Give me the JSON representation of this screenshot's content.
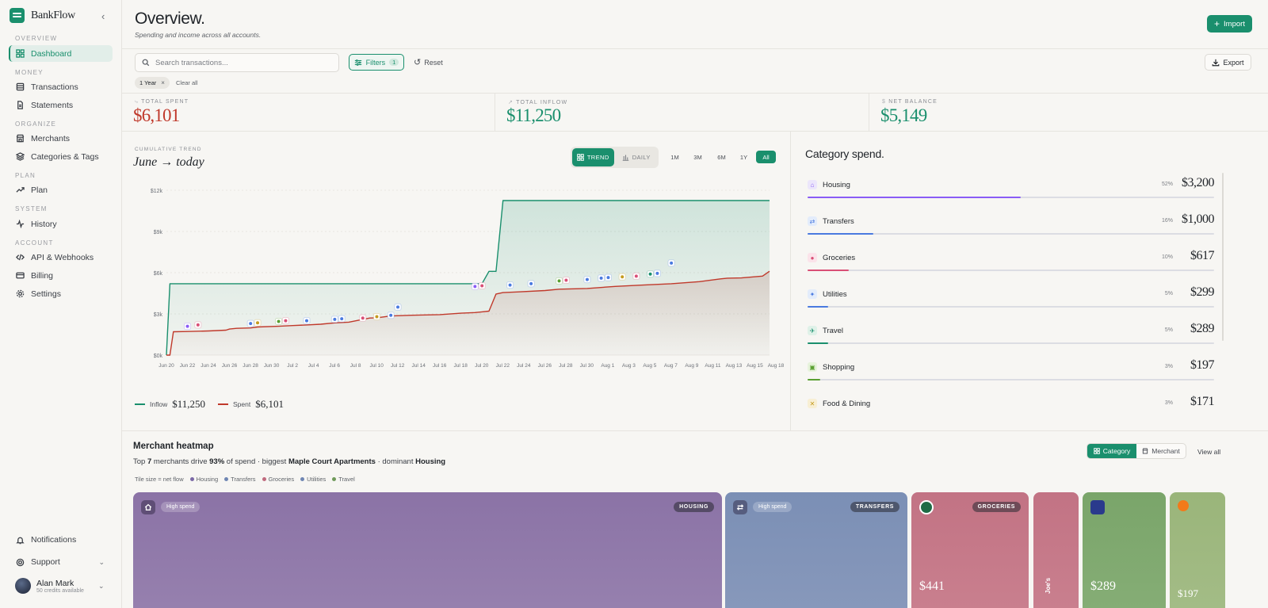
{
  "app": {
    "name": "BankFlow"
  },
  "sidebar": {
    "sections": [
      {
        "label": "OVERVIEW",
        "items": [
          {
            "label": "Dashboard",
            "icon": "grid-icon",
            "active": true
          }
        ]
      },
      {
        "label": "MONEY",
        "items": [
          {
            "label": "Transactions",
            "icon": "list-icon"
          },
          {
            "label": "Statements",
            "icon": "document-icon"
          }
        ]
      },
      {
        "label": "ORGANIZE",
        "items": [
          {
            "label": "Merchants",
            "icon": "store-icon"
          },
          {
            "label": "Categories & Tags",
            "icon": "layers-icon"
          }
        ]
      },
      {
        "label": "PLAN",
        "items": [
          {
            "label": "Plan",
            "icon": "trend-icon"
          }
        ]
      },
      {
        "label": "SYSTEM",
        "items": [
          {
            "label": "History",
            "icon": "activity-icon"
          }
        ]
      },
      {
        "label": "ACCOUNT",
        "items": [
          {
            "label": "API & Webhooks",
            "icon": "code-icon"
          },
          {
            "label": "Billing",
            "icon": "card-icon"
          },
          {
            "label": "Settings",
            "icon": "gear-icon"
          }
        ]
      }
    ],
    "bottom": {
      "notifications": "Notifications",
      "support": "Support"
    },
    "user": {
      "name": "Alan Mark",
      "credits": "50 credits available"
    }
  },
  "header": {
    "title": "Overview.",
    "subtitle": "Spending and income across all accounts.",
    "import_label": "Import"
  },
  "filters": {
    "search_placeholder": "Search transactions...",
    "filters_label": "Filters",
    "filters_count": "1",
    "reset_label": "Reset",
    "export_label": "Export",
    "active_chip": "1 Year",
    "clear_all": "Clear all"
  },
  "kpis": [
    {
      "label": "TOTAL SPENT",
      "value": "$6,101",
      "color": "#c0392b"
    },
    {
      "label": "TOTAL INFLOW",
      "value": "$11,250",
      "color": "#1a8f6d"
    },
    {
      "label": "NET BALANCE",
      "value": "$5,149",
      "color": "#1a8f6d"
    }
  ],
  "trend": {
    "kicker": "CUMULATIVE TREND",
    "title": "June → today",
    "toggle": {
      "trend": "TREND",
      "daily": "DAILY",
      "active": "trend"
    },
    "ranges": [
      "1M",
      "3M",
      "6M",
      "1Y",
      "All"
    ],
    "active_range": "All",
    "legend": {
      "inflow_label": "Inflow",
      "inflow_value": "$11,250",
      "spent_label": "Spent",
      "spent_value": "$6,101"
    }
  },
  "chart_data": {
    "type": "area",
    "title": "June → today",
    "yticks": [
      "$0k",
      "$3k",
      "$6k",
      "$9k",
      "$12k"
    ],
    "ylim": [
      0,
      12000
    ],
    "xticks": [
      "Jun 20",
      "Jun 22",
      "Jun 24",
      "Jun 26",
      "Jun 28",
      "Jun 30",
      "Jul 2",
      "Jul 4",
      "Jul 6",
      "Jul 8",
      "Jul 10",
      "Jul 12",
      "Jul 14",
      "Jul 16",
      "Jul 18",
      "Jul 20",
      "Jul 22",
      "Jul 24",
      "Jul 26",
      "Jul 28",
      "Jul 30",
      "Aug 1",
      "Aug 3",
      "Aug 5",
      "Aug 7",
      "Aug 9",
      "Aug 11",
      "Aug 13",
      "Aug 15",
      "Aug 18"
    ],
    "x": [
      0,
      0.5,
      1,
      3,
      6,
      8.5,
      9,
      10,
      12,
      13,
      16,
      18,
      20,
      22,
      24,
      26,
      27,
      29,
      30,
      32,
      35,
      39,
      42,
      44,
      45,
      46,
      47,
      48,
      50,
      54,
      56,
      60,
      64,
      68,
      72,
      76,
      79,
      80,
      82,
      85,
      86
    ],
    "series": [
      {
        "name": "Inflow",
        "color": "#1a8f6d",
        "values": [
          0,
          5200,
          5200,
          5200,
          5200,
          5200,
          5200,
          5200,
          5200,
          5200,
          5200,
          5200,
          5200,
          5200,
          5200,
          5200,
          5200,
          5200,
          5200,
          5200,
          5200,
          5200,
          5200,
          5200,
          5200,
          6100,
          6100,
          11250,
          11250,
          11250,
          11250,
          11250,
          11250,
          11250,
          11250,
          11250,
          11250,
          11250,
          11250,
          11250,
          11250
        ]
      },
      {
        "name": "Spent",
        "color": "#c0392b",
        "values": [
          0,
          0,
          1700,
          1720,
          1760,
          1820,
          1900,
          1950,
          1980,
          2050,
          2100,
          2150,
          2200,
          2250,
          2350,
          2400,
          2500,
          2700,
          2720,
          2850,
          2900,
          2950,
          3050,
          3100,
          3150,
          3200,
          4450,
          4550,
          4600,
          4700,
          4800,
          4850,
          5000,
          5100,
          5200,
          5350,
          5550,
          5600,
          5620,
          5750,
          6101
        ]
      }
    ],
    "markers": [
      {
        "x": 3,
        "y": 2100,
        "icon": "housing-icon",
        "color": "#8a5cf6"
      },
      {
        "x": 4.5,
        "y": 2200,
        "icon": "groceries-icon",
        "color": "#d94f76"
      },
      {
        "x": 12,
        "y": 2300,
        "icon": "utilities-icon",
        "color": "#4a7ae0"
      },
      {
        "x": 13,
        "y": 2350,
        "icon": "dining-icon",
        "color": "#c59b1e"
      },
      {
        "x": 16,
        "y": 2450,
        "icon": "shopping-icon",
        "color": "#5aa032"
      },
      {
        "x": 17,
        "y": 2500,
        "icon": "groceries-icon",
        "color": "#d94f76"
      },
      {
        "x": 20,
        "y": 2500,
        "icon": "transfers-icon",
        "color": "#4a7ae0"
      },
      {
        "x": 24,
        "y": 2600,
        "icon": "utilities-icon",
        "color": "#4a7ae0"
      },
      {
        "x": 25,
        "y": 2650,
        "icon": "travel-icon",
        "color": "#4a7ae0"
      },
      {
        "x": 28,
        "y": 2700,
        "icon": "groceries-icon",
        "color": "#d94f76"
      },
      {
        "x": 30,
        "y": 2800,
        "icon": "dining-icon",
        "color": "#c59b1e"
      },
      {
        "x": 32,
        "y": 2900,
        "icon": "travel-icon",
        "color": "#4a7ae0"
      },
      {
        "x": 33,
        "y": 3500,
        "icon": "transfers-icon",
        "color": "#4a7ae0"
      },
      {
        "x": 44,
        "y": 5000,
        "icon": "housing-icon",
        "color": "#8a5cf6"
      },
      {
        "x": 45,
        "y": 5050,
        "icon": "groceries-icon",
        "color": "#d94f76"
      },
      {
        "x": 49,
        "y": 5100,
        "icon": "travel-icon",
        "color": "#4a7ae0"
      },
      {
        "x": 52,
        "y": 5200,
        "icon": "utilities-icon",
        "color": "#4a7ae0"
      },
      {
        "x": 56,
        "y": 5400,
        "icon": "shopping-icon",
        "color": "#5aa032"
      },
      {
        "x": 57,
        "y": 5450,
        "icon": "groceries-icon",
        "color": "#d94f76"
      },
      {
        "x": 60,
        "y": 5500,
        "icon": "utilities-icon",
        "color": "#4a7ae0"
      },
      {
        "x": 62,
        "y": 5600,
        "icon": "travel-icon",
        "color": "#4a7ae0"
      },
      {
        "x": 63,
        "y": 5650,
        "icon": "utilities-icon",
        "color": "#4a7ae0"
      },
      {
        "x": 65,
        "y": 5700,
        "icon": "dining-icon",
        "color": "#c59b1e"
      },
      {
        "x": 67,
        "y": 5750,
        "icon": "groceries-icon",
        "color": "#d94f76"
      },
      {
        "x": 69,
        "y": 5900,
        "icon": "travel-icon",
        "color": "#1a8f6d"
      },
      {
        "x": 70,
        "y": 5950,
        "icon": "travel-icon",
        "color": "#4a7ae0"
      },
      {
        "x": 72,
        "y": 6700,
        "icon": "transfers-icon",
        "color": "#4a7ae0"
      }
    ],
    "legend": [
      "Inflow",
      "Spent"
    ]
  },
  "categories": {
    "title": "Category spend.",
    "items": [
      {
        "name": "Housing",
        "pct": "52%",
        "pct_value": 52,
        "amount": "$3,200",
        "color": "#8a5cf6",
        "bg": "#ece6fb",
        "icon": "housing-icon",
        "glyph": "⌂"
      },
      {
        "name": "Transfers",
        "pct": "16%",
        "pct_value": 16,
        "amount": "$1,000",
        "color": "#4a7ae0",
        "bg": "#e3ecfb",
        "icon": "transfers-icon",
        "glyph": "⇄"
      },
      {
        "name": "Groceries",
        "pct": "10%",
        "pct_value": 10,
        "amount": "$617",
        "color": "#d94f76",
        "bg": "#fbe3ea",
        "icon": "groceries-icon",
        "glyph": "●"
      },
      {
        "name": "Utilities",
        "pct": "5%",
        "pct_value": 5,
        "amount": "$299",
        "color": "#4a7ae0",
        "bg": "#e3ecfb",
        "icon": "utilities-icon",
        "glyph": "✦"
      },
      {
        "name": "Travel",
        "pct": "5%",
        "pct_value": 5,
        "amount": "$289",
        "color": "#1a8f6d",
        "bg": "#dff1e8",
        "icon": "travel-icon",
        "glyph": "✈"
      },
      {
        "name": "Shopping",
        "pct": "3%",
        "pct_value": 3,
        "amount": "$197",
        "color": "#5aa032",
        "bg": "#e7f3dc",
        "icon": "shopping-icon",
        "glyph": "▣"
      },
      {
        "name": "Food & Dining",
        "pct": "3%",
        "pct_value": 3,
        "amount": "$171",
        "color": "#c59b1e",
        "bg": "#f8efd4",
        "icon": "dining-icon",
        "glyph": "✕"
      }
    ]
  },
  "heatmap": {
    "title": "Merchant heatmap",
    "sub": {
      "p1": "Top ",
      "count": "7",
      "p2": " merchants drive ",
      "pct": "93%",
      "p3": " of spend · biggest ",
      "biggest": "Maple Court Apartments",
      "p4": " · dominant ",
      "dominant": "Housing"
    },
    "legend_label": "Tile size = net flow",
    "legend": [
      {
        "name": "Housing",
        "color": "#7a68a6"
      },
      {
        "name": "Transfers",
        "color": "#6f86b3"
      },
      {
        "name": "Groceries",
        "color": "#c06a7e"
      },
      {
        "name": "Utilities",
        "color": "#6f86b3"
      },
      {
        "name": "Travel",
        "color": "#6f9a5a"
      }
    ],
    "view_toggle": {
      "category": "Category",
      "merchant": "Merchant",
      "active": "category"
    },
    "view_all": "View all",
    "tiles": [
      {
        "tag": "High spend",
        "category": "HOUSING",
        "amount": "",
        "color": "#8b73a6",
        "icon": "housing-icon"
      },
      {
        "tag": "High spend",
        "category": "TRANSFERS",
        "amount": "",
        "color": "#7b8fb5",
        "icon": "transfers-icon"
      },
      {
        "tag": "",
        "category": "GROCERIES",
        "amount": "$441",
        "color": "#c27384",
        "icon": "groceries-logo-icon"
      },
      {
        "tag": "",
        "category": "",
        "amount": "",
        "vertical_label": "Joe's",
        "color": "#c27384",
        "icon": ""
      },
      {
        "tag": "",
        "category": "",
        "amount": "$289",
        "color": "#7aa56a",
        "icon": "airline-logo-icon"
      },
      {
        "tag": "",
        "category": "",
        "amount": "$197",
        "color": "#9ab57a",
        "icon": "shopping-logo-icon"
      }
    ]
  }
}
